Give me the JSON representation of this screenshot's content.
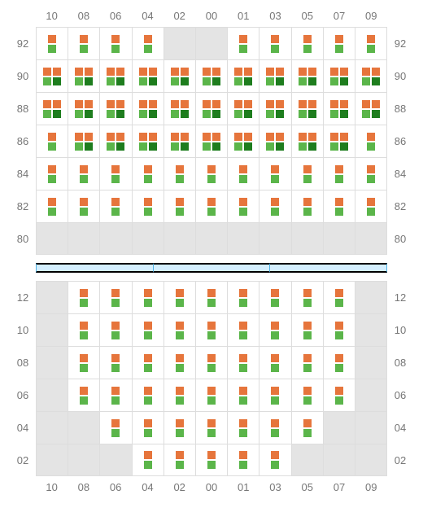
{
  "colors": {
    "orange": "#e6753c",
    "green": "#5bb54a",
    "darkgreen": "#1e7d1e",
    "empty_bg": "#e4e4e4",
    "grid_border": "#dddddd",
    "label_color": "#777777",
    "divider_fill": "#d4efff",
    "divider_border": "#50b3e6"
  },
  "columns": [
    "10",
    "08",
    "06",
    "04",
    "02",
    "00",
    "01",
    "03",
    "05",
    "07",
    "09"
  ],
  "top": {
    "rows": [
      "92",
      "90",
      "88",
      "86",
      "84",
      "82",
      "80"
    ],
    "cells": [
      [
        "s",
        "s",
        "s",
        "s",
        "e",
        "e",
        "s",
        "s",
        "s",
        "s",
        "s"
      ],
      [
        "d",
        "d",
        "d",
        "d",
        "d",
        "d",
        "d",
        "d",
        "d",
        "d",
        "d"
      ],
      [
        "d",
        "d",
        "d",
        "d",
        "d",
        "d",
        "d",
        "d",
        "d",
        "d",
        "d"
      ],
      [
        "s",
        "d",
        "d",
        "d",
        "d",
        "d",
        "d",
        "d",
        "d",
        "d",
        "s"
      ],
      [
        "s",
        "s",
        "s",
        "s",
        "s",
        "s",
        "s",
        "s",
        "s",
        "s",
        "s"
      ],
      [
        "s",
        "s",
        "s",
        "s",
        "s",
        "s",
        "s",
        "s",
        "s",
        "s",
        "s"
      ],
      [
        "e",
        "e",
        "e",
        "e",
        "e",
        "e",
        "e",
        "e",
        "e",
        "e",
        "e"
      ]
    ]
  },
  "bottom": {
    "rows": [
      "12",
      "10",
      "08",
      "06",
      "04",
      "02"
    ],
    "cells": [
      [
        "e",
        "s",
        "s",
        "s",
        "s",
        "s",
        "s",
        "s",
        "s",
        "s",
        "e"
      ],
      [
        "e",
        "s",
        "s",
        "s",
        "s",
        "s",
        "s",
        "s",
        "s",
        "s",
        "e"
      ],
      [
        "e",
        "s",
        "s",
        "s",
        "s",
        "s",
        "s",
        "s",
        "s",
        "s",
        "e"
      ],
      [
        "e",
        "s",
        "s",
        "s",
        "s",
        "s",
        "s",
        "s",
        "s",
        "s",
        "e"
      ],
      [
        "e",
        "e",
        "s",
        "s",
        "s",
        "s",
        "s",
        "s",
        "s",
        "e",
        "e"
      ],
      [
        "e",
        "e",
        "e",
        "s",
        "s",
        "s",
        "s",
        "s",
        "e",
        "e",
        "e"
      ]
    ]
  },
  "divider_segments": 3
}
